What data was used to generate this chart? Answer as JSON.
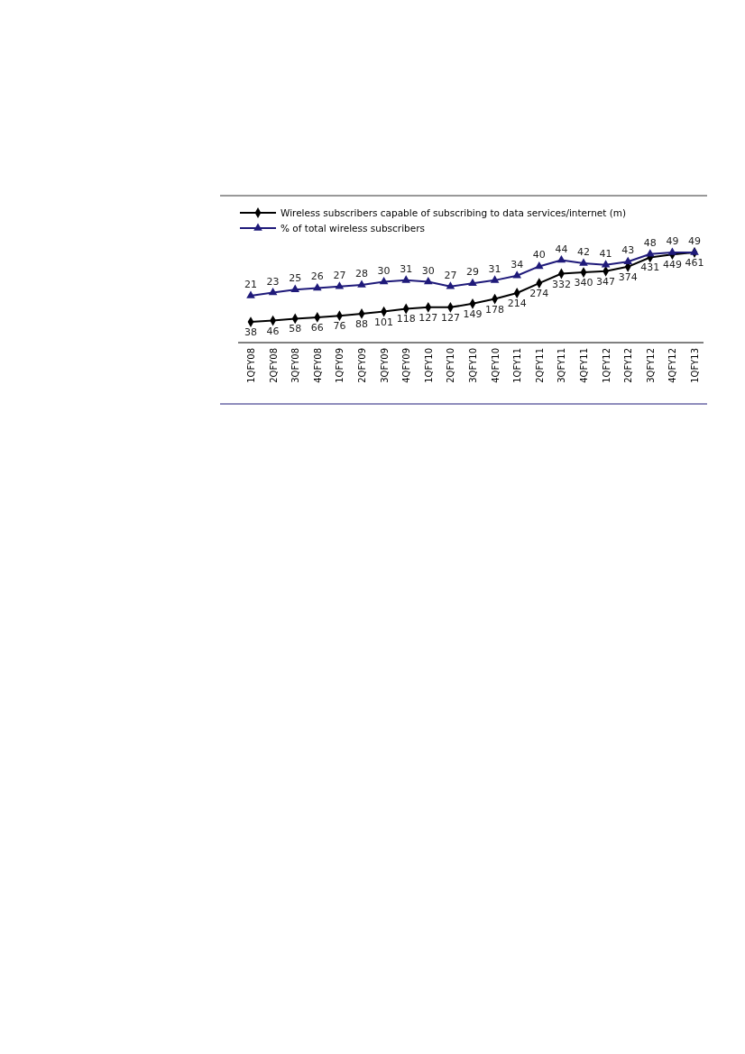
{
  "chart_data": {
    "type": "line",
    "categories": [
      "1QFY08",
      "2QFY08",
      "3QFY08",
      "4QFY08",
      "1QFY09",
      "2QFY09",
      "3QFY09",
      "4QFY09",
      "1QFY10",
      "2QFY10",
      "3QFY10",
      "4QFY10",
      "1QFY11",
      "2QFY11",
      "3QFY11",
      "4QFY11",
      "1QFY12",
      "2QFY12",
      "3QFY12",
      "4QFY12",
      "1QFY13"
    ],
    "series": [
      {
        "name": "Wireless subscribers capable of  subscribing to data services/internet (m)",
        "color": "#000000",
        "marker": "diamond",
        "values": [
          38,
          46,
          58,
          66,
          76,
          88,
          101,
          118,
          127,
          127,
          149,
          178,
          214,
          274,
          332,
          340,
          347,
          374,
          431,
          449,
          461
        ]
      },
      {
        "name": "% of total wireless subscribers",
        "color": "#1f1a7a",
        "marker": "triangle",
        "axis": "y2",
        "values": [
          21,
          23,
          25,
          26,
          27,
          28,
          30,
          31,
          30,
          27,
          29,
          31,
          34,
          40,
          44,
          42,
          41,
          43,
          48,
          49,
          49
        ]
      }
    ],
    "data_labels": true,
    "legend": "top left",
    "grid": false,
    "tick_labels": "x"
  }
}
